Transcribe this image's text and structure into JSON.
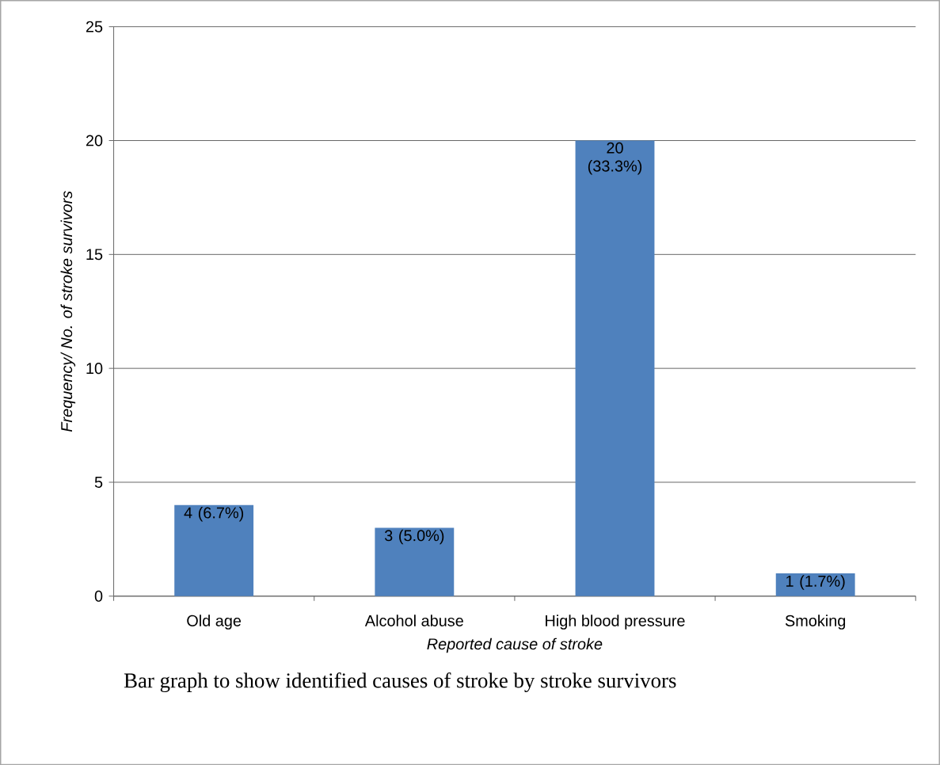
{
  "chart_data": {
    "type": "bar",
    "xlabel": "Reported cause of stroke",
    "ylabel": "Frequency/ No. of stroke survivors",
    "categories": [
      "Old age",
      "Alcohol abuse",
      "High blood pressure",
      "Smoking"
    ],
    "values": [
      4,
      3,
      20,
      1
    ],
    "value_labels": [
      "4 (6.7%)",
      "3 (5.0%)",
      "20 (33.3%)",
      "1 (1.7%)"
    ],
    "color": "#4f81bd",
    "ylim": [
      0,
      25
    ],
    "yticks": [
      0,
      5,
      10,
      15,
      20,
      25
    ],
    "grid": "y",
    "annotations": [
      "Bar graph to show identified causes of stroke by stroke survivors"
    ]
  }
}
